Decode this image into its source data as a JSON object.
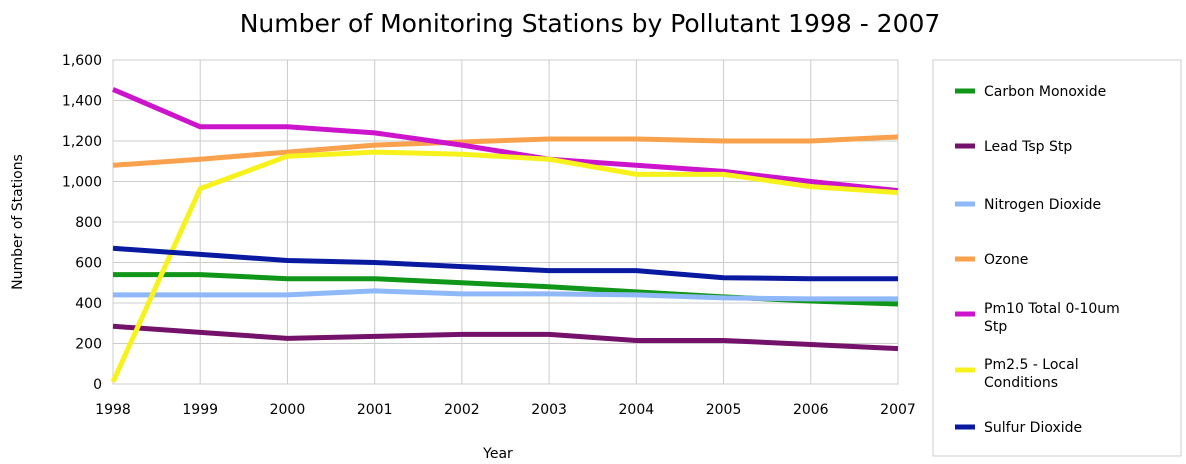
{
  "chart_data": {
    "type": "line",
    "title": "Number of Monitoring Stations by Pollutant 1998 - 2007",
    "xlabel": "Year",
    "ylabel": "Number of Stations",
    "x": [
      "1998",
      "1999",
      "2000",
      "2001",
      "2002",
      "2003",
      "2004",
      "2005",
      "2006",
      "2007"
    ],
    "y_ticks": [
      "0",
      "200",
      "400",
      "600",
      "800",
      "1,000",
      "1,200",
      "1,400",
      "1,600"
    ],
    "ylim": [
      0,
      1600
    ],
    "grid": true,
    "legend_position": "right",
    "series": [
      {
        "name": "Carbon Monoxide",
        "color": "#109618",
        "values": [
          540,
          540,
          520,
          520,
          500,
          480,
          455,
          430,
          410,
          395
        ]
      },
      {
        "name": "Lead Tsp Stp",
        "color": "#74126b",
        "values": [
          285,
          255,
          225,
          235,
          245,
          245,
          215,
          215,
          195,
          175
        ]
      },
      {
        "name": "Nitrogen Dioxide",
        "color": "#8fb8f8",
        "values": [
          440,
          440,
          440,
          460,
          445,
          445,
          440,
          425,
          420,
          420
        ]
      },
      {
        "name": "Ozone",
        "color": "#f9a14c",
        "values": [
          1080,
          1110,
          1145,
          1180,
          1195,
          1210,
          1210,
          1200,
          1200,
          1220
        ]
      },
      {
        "name": "Pm10 Total 0-10um Stp",
        "color": "#cc14cc",
        "values": [
          1455,
          1270,
          1270,
          1240,
          1180,
          1110,
          1080,
          1050,
          1000,
          955
        ]
      },
      {
        "name": "Pm2.5 - Local Conditions",
        "color": "#f7f21b",
        "values": [
          10,
          965,
          1125,
          1145,
          1135,
          1110,
          1035,
          1035,
          975,
          945
        ]
      },
      {
        "name": "Sulfur Dioxide",
        "color": "#0a1aa0",
        "values": [
          670,
          640,
          610,
          600,
          580,
          560,
          560,
          525,
          520,
          520
        ]
      }
    ]
  }
}
